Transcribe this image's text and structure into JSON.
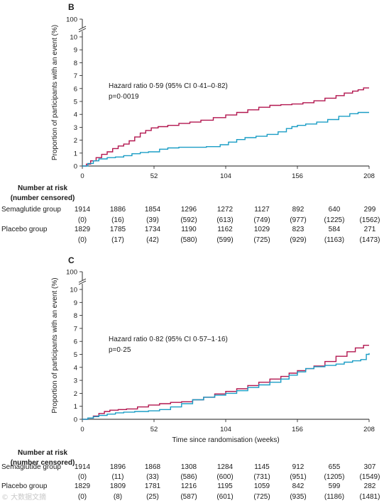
{
  "chart_data": [
    {
      "type": "line",
      "panel_label": "B",
      "ylabel": "Proportion of participants with an event (%)",
      "xlabel": "",
      "y_ticks": [
        0,
        1,
        2,
        3,
        4,
        5,
        6,
        7,
        8,
        9,
        10
      ],
      "y_break_tick": 100,
      "x_ticks": [
        0,
        52,
        104,
        156,
        208
      ],
      "xlim": [
        0,
        208
      ],
      "ylim": [
        0,
        10
      ],
      "annotation": [
        "Hazard ratio 0·59 (95% CI 0·41–0·82)",
        "p=0·0019"
      ],
      "series": [
        {
          "group": "semaglutide",
          "color": "#b2164f",
          "x": [
            0,
            3,
            6,
            10,
            14,
            18,
            22,
            26,
            30,
            34,
            38,
            42,
            46,
            50,
            55,
            62,
            70,
            78,
            86,
            95,
            104,
            112,
            120,
            128,
            136,
            144,
            152,
            160,
            168,
            176,
            184,
            190,
            196,
            200,
            204,
            208
          ],
          "y": [
            0,
            0.15,
            0.4,
            0.65,
            0.9,
            1.1,
            1.35,
            1.55,
            1.7,
            1.95,
            2.25,
            2.55,
            2.75,
            2.95,
            3.05,
            3.15,
            3.3,
            3.4,
            3.55,
            3.75,
            3.95,
            4.15,
            4.35,
            4.55,
            4.7,
            4.75,
            4.8,
            4.9,
            5.05,
            5.25,
            5.45,
            5.65,
            5.8,
            5.9,
            6.05,
            6.05
          ]
        },
        {
          "group": "placebo",
          "color": "#1a9dc5",
          "x": [
            0,
            4,
            8,
            12,
            18,
            24,
            30,
            36,
            42,
            48,
            56,
            62,
            70,
            80,
            90,
            100,
            106,
            112,
            118,
            126,
            134,
            142,
            148,
            152,
            156,
            162,
            170,
            178,
            186,
            194,
            200,
            208
          ],
          "y": [
            0,
            0.2,
            0.4,
            0.55,
            0.65,
            0.7,
            0.8,
            0.95,
            1.05,
            1.1,
            1.3,
            1.4,
            1.45,
            1.45,
            1.5,
            1.65,
            1.85,
            2.05,
            2.2,
            2.3,
            2.45,
            2.65,
            2.9,
            3.05,
            3.15,
            3.25,
            3.4,
            3.6,
            3.85,
            4.05,
            4.15,
            4.15
          ]
        }
      ],
      "risk_table": {
        "header": [
          "Number at risk",
          "(number censored)"
        ],
        "rows": [
          {
            "label": "Semaglutide group",
            "at_risk": [
              "1914",
              "1886",
              "1854",
              "1296",
              "1272",
              "1127",
              "892",
              "640",
              "299"
            ],
            "censored": [
              "(0)",
              "(16)",
              "(39)",
              "(592)",
              "(613)",
              "(749)",
              "(977)",
              "(1225)",
              "(1562)"
            ]
          },
          {
            "label": "Placebo group",
            "at_risk": [
              "1829",
              "1785",
              "1734",
              "1190",
              "1162",
              "1029",
              "823",
              "584",
              "271"
            ],
            "censored": [
              "(0)",
              "(17)",
              "(42)",
              "(580)",
              "(599)",
              "(725)",
              "(929)",
              "(1163)",
              "(1473)"
            ]
          }
        ]
      }
    },
    {
      "type": "line",
      "panel_label": "C",
      "ylabel": "Proportion of participants with an event (%)",
      "xlabel": "Time since randomisation (weeks)",
      "y_ticks": [
        0,
        1,
        2,
        3,
        4,
        5,
        6,
        7,
        8,
        9,
        10
      ],
      "y_break_tick": 100,
      "x_ticks": [
        0,
        52,
        104,
        156,
        208
      ],
      "xlim": [
        0,
        208
      ],
      "ylim": [
        0,
        10
      ],
      "annotation": [
        "Hazard ratio 0·82 (95% CI 0·57–1·16)",
        "p=0·25"
      ],
      "series": [
        {
          "group": "semaglutide",
          "color": "#b2164f",
          "x": [
            0,
            4,
            8,
            12,
            16,
            20,
            26,
            32,
            40,
            48,
            56,
            64,
            72,
            80,
            88,
            96,
            104,
            112,
            120,
            128,
            136,
            144,
            150,
            156,
            162,
            168,
            176,
            184,
            192,
            198,
            204,
            208
          ],
          "y": [
            0,
            0.1,
            0.25,
            0.45,
            0.6,
            0.7,
            0.75,
            0.8,
            0.95,
            1.1,
            1.2,
            1.3,
            1.35,
            1.5,
            1.7,
            1.95,
            2.15,
            2.35,
            2.6,
            2.85,
            3.1,
            3.3,
            3.55,
            3.75,
            3.9,
            4.1,
            4.45,
            4.85,
            5.2,
            5.5,
            5.7,
            5.7
          ]
        },
        {
          "group": "placebo",
          "color": "#1a9dc5",
          "x": [
            0,
            4,
            8,
            12,
            18,
            24,
            30,
            38,
            48,
            56,
            64,
            72,
            80,
            88,
            96,
            104,
            112,
            120,
            128,
            136,
            144,
            150,
            156,
            162,
            168,
            176,
            184,
            190,
            196,
            202,
            206,
            208
          ],
          "y": [
            0,
            0.1,
            0.2,
            0.3,
            0.4,
            0.5,
            0.55,
            0.6,
            0.65,
            0.75,
            0.95,
            1.2,
            1.5,
            1.7,
            1.85,
            2.0,
            2.2,
            2.45,
            2.65,
            2.85,
            3.1,
            3.4,
            3.65,
            3.9,
            4.05,
            4.15,
            4.25,
            4.4,
            4.5,
            4.6,
            5.0,
            5.1
          ]
        }
      ],
      "risk_table": {
        "header": [
          "Number at risk",
          "(number censored)"
        ],
        "rows": [
          {
            "label": "Semaglutide group",
            "at_risk": [
              "1914",
              "1896",
              "1868",
              "1308",
              "1284",
              "1145",
              "912",
              "655",
              "307"
            ],
            "censored": [
              "(0)",
              "(11)",
              "(33)",
              "(586)",
              "(600)",
              "(731)",
              "(951)",
              "(1205)",
              "(1549)"
            ]
          },
          {
            "label": "Placebo group",
            "at_risk": [
              "1829",
              "1809",
              "1781",
              "1216",
              "1195",
              "1059",
              "842",
              "599",
              "282"
            ],
            "censored": [
              "(0)",
              "(8)",
              "(25)",
              "(587)",
              "(601)",
              "(725)",
              "(935)",
              "(1186)",
              "(1481)"
            ]
          }
        ]
      }
    }
  ],
  "watermark": "© 大数据文摘"
}
